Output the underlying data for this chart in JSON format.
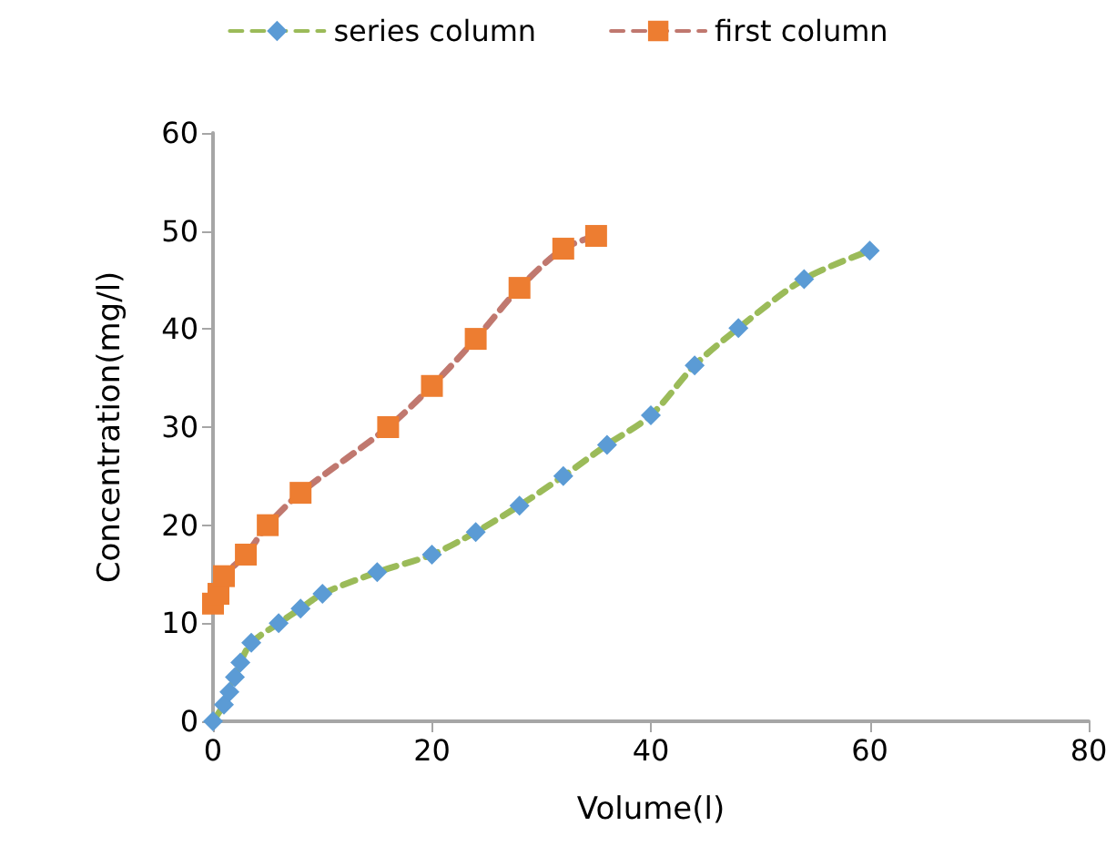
{
  "chart_data": {
    "type": "line",
    "xlabel": "Volume(l)",
    "ylabel": "Concentration(mg/l)",
    "xlim": [
      0,
      80
    ],
    "xticks": [
      0,
      20,
      40,
      60,
      80
    ],
    "ylim": [
      0,
      60
    ],
    "yticks": [
      0,
      10,
      20,
      30,
      40,
      50,
      60
    ],
    "grid": false,
    "legend": "top",
    "line_style": "dashed",
    "series": [
      {
        "name": "series column",
        "color": "#5b9bd5",
        "marker": "diamond",
        "x": [
          0,
          1,
          1.5,
          2,
          2.5,
          3.5,
          6,
          8,
          10,
          15,
          20,
          24,
          28,
          32,
          36,
          40,
          44,
          48,
          54,
          60
        ],
        "values": [
          0,
          1.7,
          3,
          4.5,
          6,
          8,
          10,
          11.5,
          13,
          15.2,
          17,
          19.3,
          22,
          25,
          28.2,
          31.2,
          36.3,
          40.1,
          45.1,
          48
        ]
      },
      {
        "name": "first column",
        "color": "#ed7d31",
        "marker": "square",
        "x": [
          0,
          0.5,
          1,
          3,
          5,
          8,
          16,
          20,
          24,
          28,
          32,
          35
        ],
        "values": [
          12,
          13,
          14.8,
          17,
          20,
          23.3,
          30,
          34.2,
          39,
          44.2,
          48.2,
          49.5
        ]
      }
    ]
  }
}
